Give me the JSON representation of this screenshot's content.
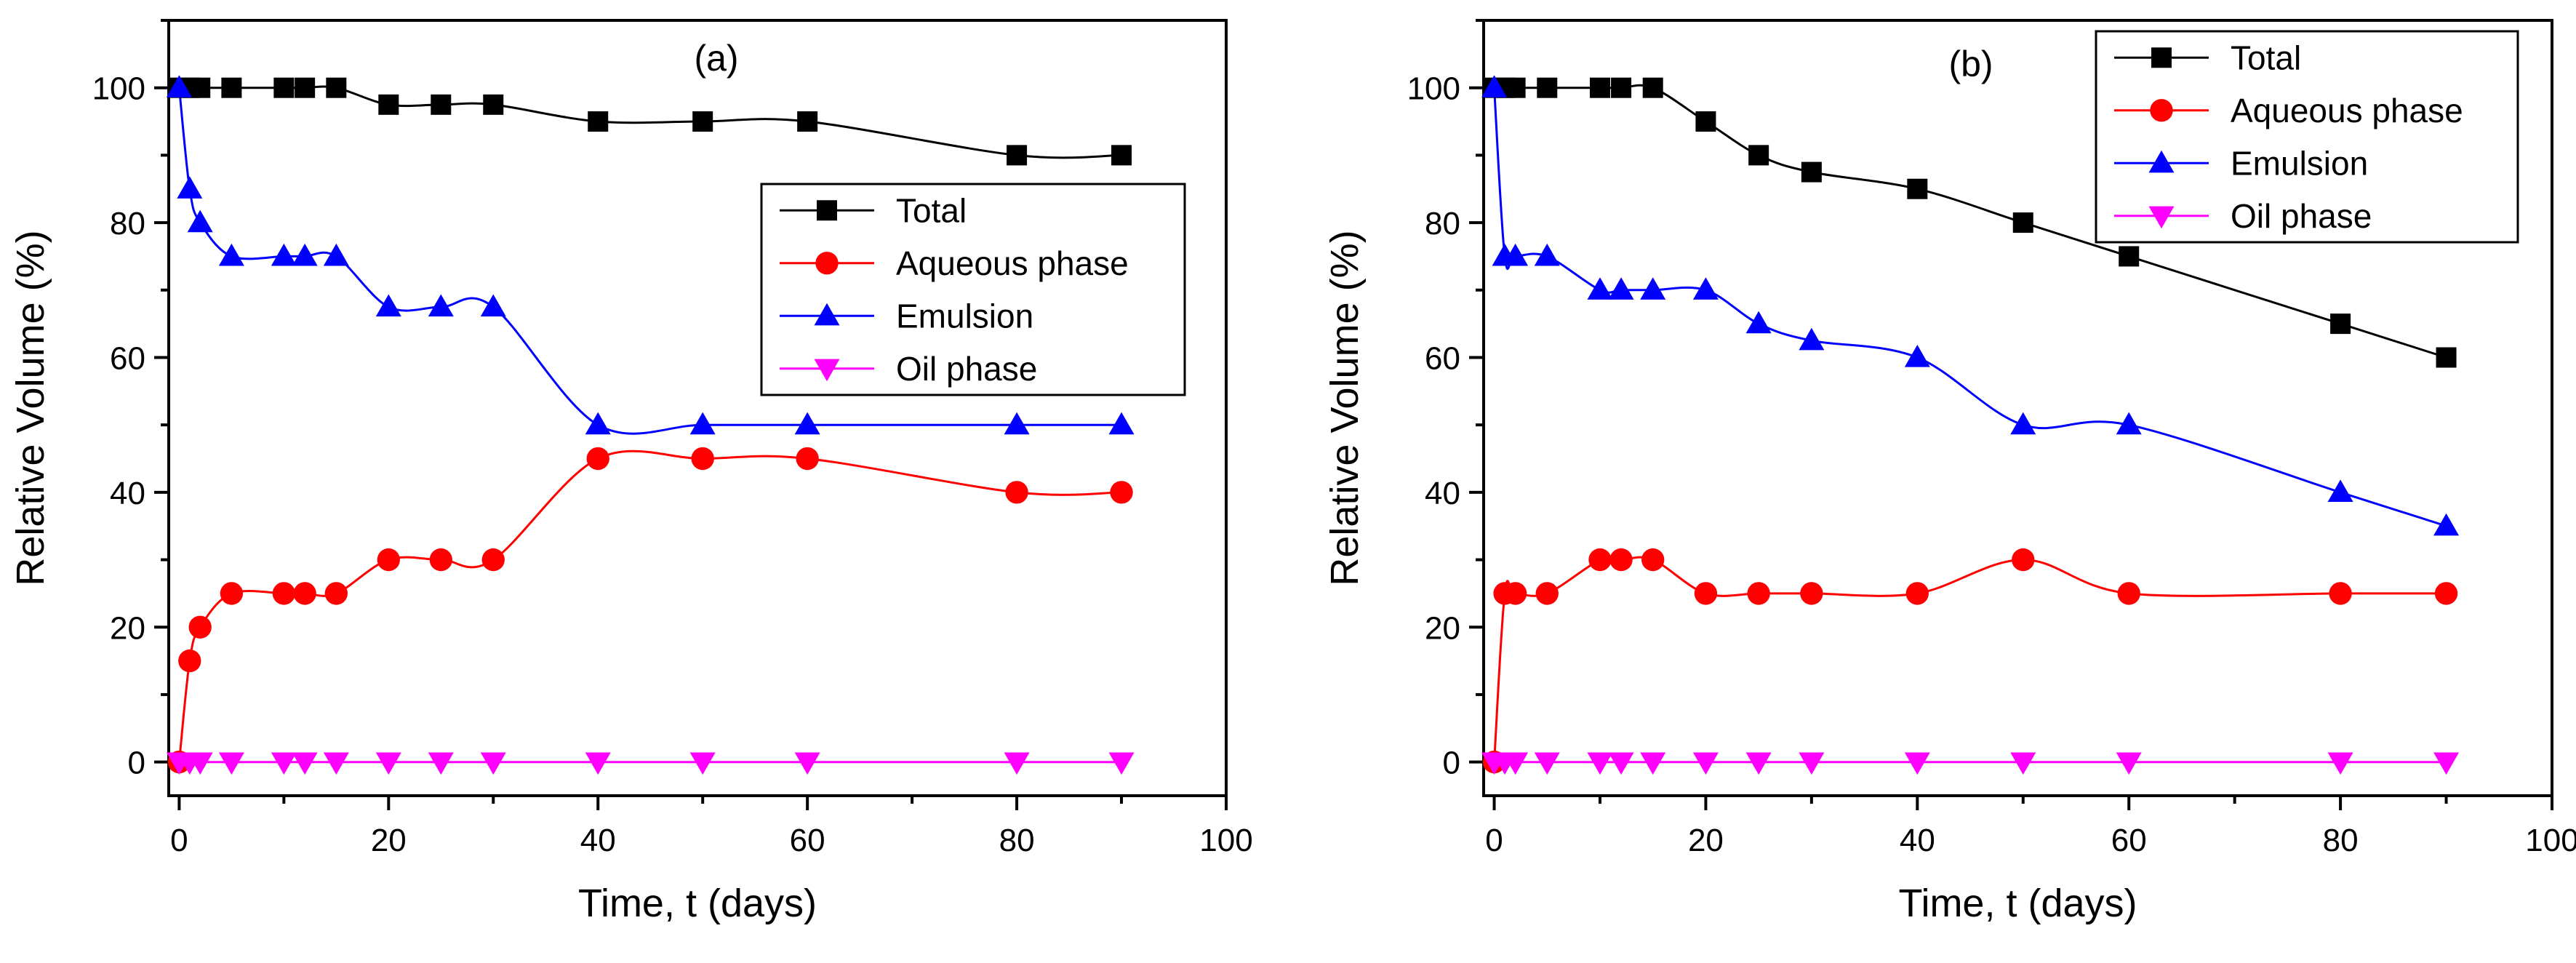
{
  "chart_data": [
    {
      "type": "line",
      "panel_label": "(a)",
      "xlabel": "Time, t (days)",
      "ylabel": "Relative Volume (%)",
      "xlim": [
        -1,
        100
      ],
      "ylim": [
        -5,
        110
      ],
      "xticks": [
        0,
        20,
        40,
        60,
        80,
        100
      ],
      "yticks": [
        0,
        20,
        40,
        60,
        80,
        100
      ],
      "xtick_labels": [
        "0",
        "20",
        "40",
        "60",
        "80",
        "100"
      ],
      "ytick_labels": [
        "0",
        "20",
        "40",
        "60",
        "80",
        "100"
      ],
      "grid": false,
      "legend_position": "center-right",
      "series": [
        {
          "name": "Total",
          "marker": "square",
          "color": "#000000",
          "x": [
            0,
            1,
            2,
            5,
            10,
            12,
            15,
            20,
            25,
            30,
            40,
            50,
            60,
            80,
            90
          ],
          "values": [
            100,
            100,
            100,
            100,
            100,
            100,
            100,
            97.5,
            97.5,
            97.5,
            95,
            95,
            95,
            90,
            90
          ]
        },
        {
          "name": "Aqueous phase",
          "marker": "circle",
          "color": "#ff0000",
          "x": [
            0,
            1,
            2,
            5,
            10,
            12,
            15,
            20,
            25,
            30,
            40,
            50,
            60,
            80,
            90
          ],
          "values": [
            0,
            15,
            20,
            25,
            25,
            25,
            25,
            30,
            30,
            30,
            45,
            45,
            45,
            40,
            40
          ]
        },
        {
          "name": "Emulsion",
          "marker": "triangle-up",
          "color": "#0000ff",
          "x": [
            0,
            1,
            2,
            5,
            10,
            12,
            15,
            20,
            25,
            30,
            40,
            50,
            60,
            80,
            90
          ],
          "values": [
            100,
            85,
            80,
            75,
            75,
            75,
            75,
            67.5,
            67.5,
            67.5,
            50,
            50,
            50,
            50,
            50
          ]
        },
        {
          "name": "Oil phase",
          "marker": "triangle-down",
          "color": "#ff00ff",
          "x": [
            0,
            1,
            2,
            5,
            10,
            12,
            15,
            20,
            25,
            30,
            40,
            50,
            60,
            80,
            90
          ],
          "values": [
            0,
            0,
            0,
            0,
            0,
            0,
            0,
            0,
            0,
            0,
            0,
            0,
            0,
            0,
            0
          ]
        }
      ]
    },
    {
      "type": "line",
      "panel_label": "(b)",
      "xlabel": "Time, t (days)",
      "ylabel": "Relative Volume (%)",
      "xlim": [
        -1,
        100
      ],
      "ylim": [
        -5,
        110
      ],
      "xticks": [
        0,
        20,
        40,
        60,
        80,
        100
      ],
      "yticks": [
        0,
        20,
        40,
        60,
        80,
        100
      ],
      "xtick_labels": [
        "0",
        "20",
        "40",
        "60",
        "80",
        "100"
      ],
      "ytick_labels": [
        "0",
        "20",
        "40",
        "60",
        "80",
        "100"
      ],
      "grid": false,
      "legend_position": "top-right",
      "series": [
        {
          "name": "Total",
          "marker": "square",
          "color": "#000000",
          "x": [
            0,
            1,
            2,
            5,
            10,
            12,
            15,
            20,
            25,
            30,
            40,
            50,
            60,
            80,
            90
          ],
          "values": [
            100,
            100,
            100,
            100,
            100,
            100,
            100,
            95,
            90,
            87.5,
            85,
            80,
            75,
            65,
            60
          ]
        },
        {
          "name": "Aqueous phase",
          "marker": "circle",
          "color": "#ff0000",
          "x": [
            0,
            1,
            2,
            5,
            10,
            12,
            15,
            20,
            25,
            30,
            40,
            50,
            60,
            80,
            90
          ],
          "values": [
            0,
            25,
            25,
            25,
            30,
            30,
            30,
            25,
            25,
            25,
            25,
            30,
            25,
            25,
            25
          ]
        },
        {
          "name": "Emulsion",
          "marker": "triangle-up",
          "color": "#0000ff",
          "x": [
            0,
            1,
            2,
            5,
            10,
            12,
            15,
            20,
            25,
            30,
            40,
            50,
            60,
            80,
            90
          ],
          "values": [
            100,
            75,
            75,
            75,
            70,
            70,
            70,
            70,
            65,
            62.5,
            60,
            50,
            50,
            40,
            35
          ]
        },
        {
          "name": "Oil phase",
          "marker": "triangle-down",
          "color": "#ff00ff",
          "x": [
            0,
            1,
            2,
            5,
            10,
            12,
            15,
            20,
            25,
            30,
            40,
            50,
            60,
            80,
            90
          ],
          "values": [
            0,
            0,
            0,
            0,
            0,
            0,
            0,
            0,
            0,
            0,
            0,
            0,
            0,
            0,
            0
          ]
        }
      ]
    }
  ]
}
